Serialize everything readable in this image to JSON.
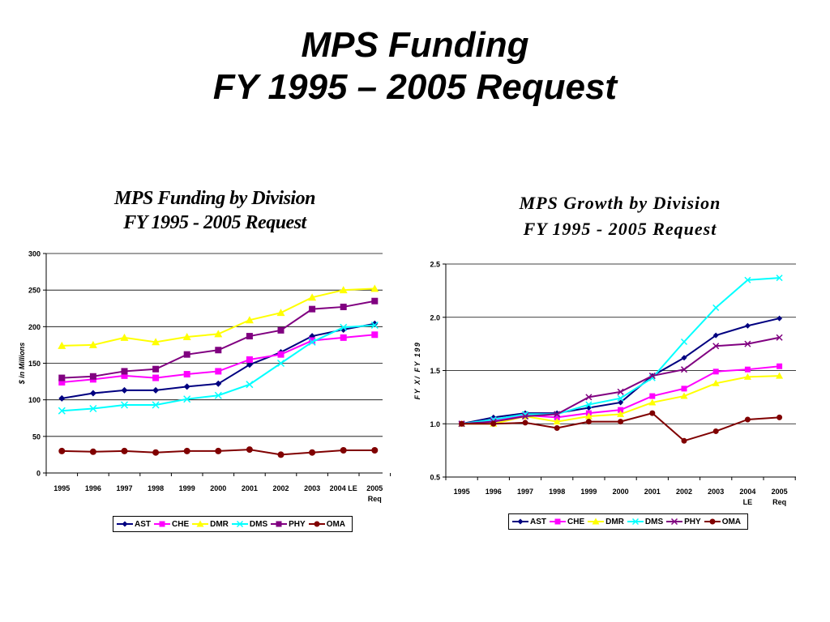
{
  "slide": {
    "title_line1": "MPS Funding",
    "title_line2": "FY 1995 – 2005 Request"
  },
  "chart_data": [
    {
      "type": "line",
      "title": "MPS Funding by Division",
      "subtitle": "FY 1995 - 2005 Request",
      "ylabel": "$ in Millions",
      "xlabel": "",
      "ylim": [
        0,
        300
      ],
      "yticks": [
        "0",
        "50",
        "100",
        "150",
        "200",
        "250",
        "300"
      ],
      "grid": "horizontal",
      "legend_position": "bottom",
      "categories": [
        "1995",
        "1996",
        "1997",
        "1998",
        "1999",
        "2000",
        "2001",
        "2002",
        "2003",
        "2004 LE",
        "2005 Req"
      ],
      "category_labels": [
        [
          "1995"
        ],
        [
          "1996"
        ],
        [
          "1997"
        ],
        [
          "1998"
        ],
        [
          "1999"
        ],
        [
          "2000"
        ],
        [
          "2001"
        ],
        [
          "2002"
        ],
        [
          "2003"
        ],
        [
          "2004 LE"
        ],
        [
          "2005",
          "Req"
        ]
      ],
      "series": [
        {
          "name": "AST",
          "color": "#000080",
          "marker": "diamond",
          "values": [
            102,
            109,
            113,
            113,
            118,
            122,
            148,
            165,
            187,
            196,
            204
          ]
        },
        {
          "name": "CHE",
          "color": "#FF00FF",
          "marker": "square",
          "values": [
            124,
            128,
            133,
            130,
            135,
            139,
            155,
            162,
            181,
            185,
            189
          ]
        },
        {
          "name": "DMR",
          "color": "#FFFF00",
          "marker": "triangle",
          "values": [
            174,
            175,
            185,
            179,
            186,
            190,
            209,
            219,
            240,
            250,
            252
          ]
        },
        {
          "name": "DMS",
          "color": "#00FFFF",
          "marker": "x",
          "values": [
            85,
            88,
            93,
            93,
            101,
            106,
            121,
            150,
            179,
            199,
            202
          ]
        },
        {
          "name": "PHY",
          "color": "#800080",
          "marker": "square",
          "values": [
            130,
            132,
            139,
            142,
            162,
            168,
            187,
            195,
            224,
            227,
            235
          ]
        },
        {
          "name": "OMA",
          "color": "#800000",
          "marker": "circle",
          "values": [
            30,
            29,
            30,
            28,
            30,
            30,
            32,
            25,
            28,
            31,
            31
          ]
        }
      ]
    },
    {
      "type": "line",
      "title": "MPS Growth by Division",
      "subtitle": "FY 1995 - 2005 Request",
      "ylabel": "FY X/ FY 199",
      "xlabel": "",
      "ylim": [
        0.5,
        2.5
      ],
      "yticks": [
        "0.5",
        "1.0",
        "1.5",
        "2.0",
        "2.5"
      ],
      "grid": "horizontal",
      "legend_position": "bottom",
      "categories": [
        "1995",
        "1996",
        "1997",
        "1998",
        "1999",
        "2000",
        "2001",
        "2002",
        "2003",
        "2004 LE",
        "2005 Req"
      ],
      "category_labels": [
        [
          "1995"
        ],
        [
          "1996"
        ],
        [
          "1997"
        ],
        [
          "1998"
        ],
        [
          "1999"
        ],
        [
          "2000"
        ],
        [
          "2001"
        ],
        [
          "2002"
        ],
        [
          "2003"
        ],
        [
          "2004",
          "LE"
        ],
        [
          "2005",
          "Req"
        ]
      ],
      "series": [
        {
          "name": "AST",
          "color": "#000080",
          "marker": "diamond",
          "values": [
            1.0,
            1.06,
            1.1,
            1.1,
            1.15,
            1.2,
            1.45,
            1.62,
            1.83,
            1.92,
            1.99
          ]
        },
        {
          "name": "CHE",
          "color": "#FF00FF",
          "marker": "square",
          "values": [
            1.0,
            1.03,
            1.08,
            1.06,
            1.1,
            1.13,
            1.26,
            1.33,
            1.49,
            1.51,
            1.54
          ]
        },
        {
          "name": "DMR",
          "color": "#FFFF00",
          "marker": "triangle",
          "values": [
            1.0,
            1.0,
            1.07,
            1.02,
            1.07,
            1.09,
            1.2,
            1.26,
            1.38,
            1.44,
            1.45
          ]
        },
        {
          "name": "DMS",
          "color": "#00FFFF",
          "marker": "x",
          "values": [
            1.0,
            1.04,
            1.09,
            1.09,
            1.18,
            1.24,
            1.43,
            1.77,
            2.09,
            2.35,
            2.37
          ]
        },
        {
          "name": "PHY",
          "color": "#800080",
          "marker": "x",
          "values": [
            1.0,
            1.02,
            1.07,
            1.09,
            1.25,
            1.3,
            1.45,
            1.51,
            1.73,
            1.75,
            1.81
          ]
        },
        {
          "name": "OMA",
          "color": "#800000",
          "marker": "circle",
          "values": [
            1.0,
            1.0,
            1.01,
            0.96,
            1.02,
            1.02,
            1.1,
            0.84,
            0.93,
            1.04,
            1.06
          ]
        }
      ]
    }
  ]
}
